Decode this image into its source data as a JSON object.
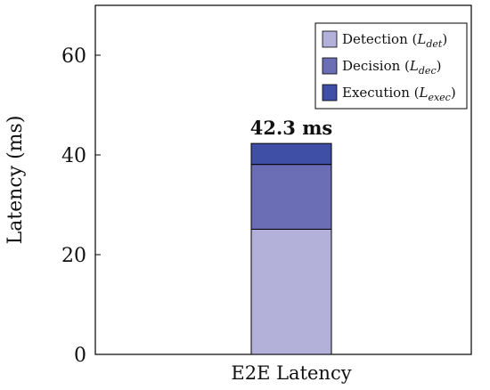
{
  "chart_data": {
    "type": "bar",
    "stacked": true,
    "categories": [
      "E2E Latency"
    ],
    "series": [
      {
        "name": "Detection",
        "symbol": "L",
        "subscript": "det",
        "values": [
          25.1
        ],
        "color": "#b3b0d9"
      },
      {
        "name": "Decision",
        "symbol": "L",
        "subscript": "dec",
        "values": [
          13.0
        ],
        "color": "#6b6db5"
      },
      {
        "name": "Execution",
        "symbol": "L",
        "subscript": "exec",
        "values": [
          4.2
        ],
        "color": "#3f4fa6"
      }
    ],
    "total_label": "42.3 ms",
    "xlabel": "",
    "ylabel": "Latency (ms)",
    "ylim": [
      0,
      70
    ],
    "yticks": [
      0,
      20,
      40,
      60
    ],
    "legend_position": "top-right",
    "grid": false
  }
}
